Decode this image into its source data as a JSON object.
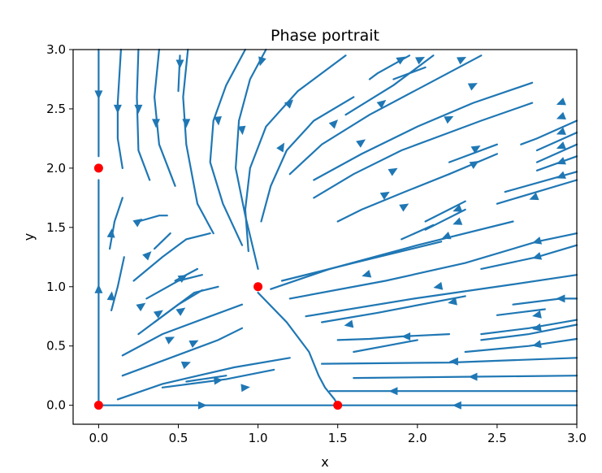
{
  "chart_data": {
    "type": "streamplot",
    "title": "Phase portrait",
    "xlabel": "x",
    "ylabel": "y",
    "xlim": [
      -0.16,
      3.0
    ],
    "ylim": [
      -0.16,
      3.0
    ],
    "xticks": [
      "0.0",
      "0.5",
      "1.0",
      "1.5",
      "2.0",
      "2.5",
      "3.0"
    ],
    "yticks": [
      "0.0",
      "0.5",
      "1.0",
      "1.5",
      "2.0",
      "2.5",
      "3.0"
    ],
    "grid": false,
    "legend": "none",
    "stream_color": "#1f77b4",
    "equilibrium_color": "#ff0000",
    "equilibria": [
      {
        "x": 0.0,
        "y": 0.0
      },
      {
        "x": 0.0,
        "y": 2.0
      },
      {
        "x": 1.0,
        "y": 1.0
      },
      {
        "x": 1.5,
        "y": 0.0
      }
    ],
    "streamlines": [
      [
        [
          0.0,
          3.0
        ],
        [
          0.0,
          2.55
        ],
        [
          0.0,
          2.1
        ]
      ],
      [
        [
          0.0,
          0.0
        ],
        [
          0.0,
          1.0
        ],
        [
          0.0,
          1.9
        ]
      ],
      [
        [
          0.0,
          0.0
        ],
        [
          0.7,
          0.0
        ],
        [
          1.5,
          0.0
        ]
      ],
      [
        [
          3.0,
          0.0
        ],
        [
          2.3,
          0.0
        ],
        [
          1.5,
          0.0
        ]
      ],
      [
        [
          0.14,
          3.0
        ],
        [
          0.12,
          2.55
        ],
        [
          0.12,
          2.25
        ],
        [
          0.15,
          2.0
        ]
      ],
      [
        [
          0.25,
          3.0
        ],
        [
          0.24,
          2.6
        ],
        [
          0.25,
          2.15
        ],
        [
          0.32,
          1.9
        ]
      ],
      [
        [
          0.38,
          3.0
        ],
        [
          0.35,
          2.6
        ],
        [
          0.38,
          2.2
        ],
        [
          0.48,
          1.85
        ]
      ],
      [
        [
          0.56,
          3.0
        ],
        [
          0.53,
          2.6
        ],
        [
          0.55,
          2.2
        ],
        [
          0.62,
          1.7
        ],
        [
          0.72,
          1.45
        ]
      ],
      [
        [
          0.51,
          2.95
        ],
        [
          0.5,
          2.65
        ]
      ],
      [
        [
          0.92,
          3.0
        ],
        [
          0.8,
          2.7
        ],
        [
          0.72,
          2.4
        ],
        [
          0.7,
          2.05
        ],
        [
          0.78,
          1.7
        ],
        [
          0.9,
          1.35
        ]
      ],
      [
        [
          1.05,
          3.0
        ],
        [
          0.95,
          2.75
        ],
        [
          0.88,
          2.4
        ],
        [
          0.86,
          2.0
        ],
        [
          0.92,
          1.6
        ],
        [
          1.0,
          1.15
        ]
      ],
      [
        [
          1.55,
          2.95
        ],
        [
          1.25,
          2.65
        ],
        [
          1.05,
          2.35
        ],
        [
          0.95,
          2.0
        ],
        [
          0.92,
          1.65
        ],
        [
          0.94,
          1.3
        ]
      ],
      [
        [
          1.6,
          2.6
        ],
        [
          1.35,
          2.4
        ],
        [
          1.18,
          2.15
        ],
        [
          1.08,
          1.85
        ],
        [
          1.02,
          1.55
        ]
      ],
      [
        [
          2.4,
          2.95
        ],
        [
          2.05,
          2.7
        ],
        [
          1.7,
          2.45
        ],
        [
          1.4,
          2.2
        ],
        [
          1.2,
          1.95
        ]
      ],
      [
        [
          2.1,
          2.95
        ],
        [
          1.85,
          2.7
        ],
        [
          1.55,
          2.45
        ]
      ],
      [
        [
          2.72,
          2.72
        ],
        [
          2.35,
          2.55
        ],
        [
          2.0,
          2.35
        ],
        [
          1.65,
          2.12
        ],
        [
          1.35,
          1.9
        ]
      ],
      [
        [
          1.95,
          2.95
        ],
        [
          1.75,
          2.8
        ],
        [
          1.7,
          2.75
        ]
      ],
      [
        [
          2.05,
          2.85
        ],
        [
          1.85,
          2.75
        ]
      ],
      [
        [
          2.72,
          2.55
        ],
        [
          2.4,
          2.4
        ],
        [
          2.2,
          2.3
        ],
        [
          1.9,
          2.15
        ],
        [
          1.6,
          1.95
        ],
        [
          1.35,
          1.75
        ]
      ],
      [
        [
          2.5,
          2.2
        ],
        [
          2.2,
          2.05
        ]
      ],
      [
        [
          2.5,
          2.12
        ],
        [
          2.2,
          1.95
        ]
      ],
      [
        [
          3.0,
          2.4
        ],
        [
          2.75,
          2.25
        ],
        [
          2.65,
          2.2
        ]
      ],
      [
        [
          3.0,
          2.3
        ],
        [
          2.75,
          2.15
        ]
      ],
      [
        [
          3.0,
          2.2
        ],
        [
          2.75,
          2.05
        ]
      ],
      [
        [
          3.0,
          2.1
        ],
        [
          2.75,
          1.98
        ]
      ],
      [
        [
          3.0,
          1.97
        ],
        [
          2.55,
          1.8
        ]
      ],
      [
        [
          3.0,
          1.9
        ],
        [
          2.5,
          1.7
        ]
      ],
      [
        [
          2.2,
          1.95
        ],
        [
          1.92,
          1.8
        ],
        [
          1.65,
          1.65
        ],
        [
          1.5,
          1.55
        ]
      ],
      [
        [
          2.3,
          1.72
        ],
        [
          2.05,
          1.55
        ]
      ],
      [
        [
          2.3,
          1.65
        ],
        [
          2.05,
          1.48
        ]
      ],
      [
        [
          2.1,
          1.52
        ],
        [
          1.9,
          1.4
        ]
      ],
      [
        [
          2.15,
          1.38
        ],
        [
          1.6,
          1.2
        ],
        [
          1.15,
          1.05
        ]
      ],
      [
        [
          2.6,
          1.55
        ],
        [
          2.0,
          1.35
        ],
        [
          1.45,
          1.15
        ],
        [
          1.08,
          0.98
        ]
      ],
      [
        [
          3.0,
          1.45
        ],
        [
          2.75,
          1.38
        ],
        [
          2.3,
          1.2
        ],
        [
          1.8,
          1.05
        ],
        [
          1.2,
          0.9
        ]
      ],
      [
        [
          3.0,
          1.35
        ],
        [
          2.75,
          1.25
        ],
        [
          2.4,
          1.15
        ]
      ],
      [
        [
          3.0,
          1.1
        ],
        [
          2.6,
          1.02
        ],
        [
          1.98,
          0.9
        ],
        [
          1.3,
          0.75
        ]
      ],
      [
        [
          3.0,
          0.9
        ],
        [
          2.9,
          0.9
        ],
        [
          2.6,
          0.85
        ]
      ],
      [
        [
          2.3,
          0.92
        ],
        [
          1.75,
          0.78
        ],
        [
          1.4,
          0.7
        ]
      ],
      [
        [
          2.8,
          0.81
        ],
        [
          2.5,
          0.76
        ]
      ],
      [
        [
          3.0,
          0.72
        ],
        [
          2.7,
          0.65
        ],
        [
          2.4,
          0.6
        ]
      ],
      [
        [
          3.0,
          0.68
        ],
        [
          2.7,
          0.6
        ],
        [
          2.4,
          0.55
        ]
      ],
      [
        [
          3.0,
          0.56
        ],
        [
          2.7,
          0.5
        ],
        [
          2.3,
          0.45
        ]
      ],
      [
        [
          2.2,
          0.6
        ],
        [
          1.9,
          0.58
        ],
        [
          1.7,
          0.56
        ],
        [
          1.5,
          0.55
        ]
      ],
      [
        [
          2.0,
          0.55
        ],
        [
          1.8,
          0.5
        ],
        [
          1.6,
          0.45
        ]
      ],
      [
        [
          3.0,
          0.4
        ],
        [
          2.2,
          0.36
        ],
        [
          1.4,
          0.35
        ]
      ],
      [
        [
          3.0,
          0.25
        ],
        [
          2.3,
          0.24
        ],
        [
          1.6,
          0.23
        ]
      ],
      [
        [
          3.0,
          0.12
        ],
        [
          2.1,
          0.12
        ],
        [
          1.45,
          0.12
        ]
      ],
      [
        [
          1.0,
          0.95
        ],
        [
          1.18,
          0.7
        ],
        [
          1.32,
          0.45
        ],
        [
          1.38,
          0.25
        ],
        [
          1.42,
          0.15
        ],
        [
          1.48,
          0.05
        ],
        [
          1.5,
          0.0
        ]
      ],
      [
        [
          0.12,
          0.05
        ],
        [
          0.4,
          0.18
        ],
        [
          0.85,
          0.32
        ],
        [
          1.2,
          0.4
        ]
      ],
      [
        [
          0.4,
          0.15
        ],
        [
          0.8,
          0.22
        ],
        [
          1.1,
          0.3
        ]
      ],
      [
        [
          0.8,
          0.25
        ],
        [
          0.55,
          0.2
        ]
      ],
      [
        [
          0.15,
          0.25
        ],
        [
          0.45,
          0.4
        ],
        [
          0.75,
          0.55
        ],
        [
          0.9,
          0.65
        ]
      ],
      [
        [
          0.15,
          0.42
        ],
        [
          0.4,
          0.6
        ],
        [
          0.7,
          0.75
        ],
        [
          0.9,
          0.85
        ]
      ],
      [
        [
          0.25,
          0.6
        ],
        [
          0.45,
          0.8
        ],
        [
          0.6,
          0.95
        ],
        [
          0.75,
          1.0
        ]
      ],
      [
        [
          0.35,
          0.7
        ],
        [
          0.5,
          0.85
        ],
        [
          0.65,
          0.97
        ]
      ],
      [
        [
          0.3,
          0.9
        ],
        [
          0.5,
          1.05
        ],
        [
          0.65,
          1.1
        ]
      ],
      [
        [
          0.48,
          1.05
        ],
        [
          0.62,
          1.15
        ]
      ],
      [
        [
          0.22,
          1.05
        ],
        [
          0.4,
          1.25
        ],
        [
          0.55,
          1.4
        ],
        [
          0.7,
          1.45
        ]
      ],
      [
        [
          0.25,
          1.55
        ],
        [
          0.38,
          1.6
        ],
        [
          0.43,
          1.6
        ]
      ],
      [
        [
          0.08,
          0.8
        ],
        [
          0.12,
          1.0
        ],
        [
          0.16,
          1.25
        ]
      ],
      [
        [
          0.07,
          1.32
        ],
        [
          0.1,
          1.55
        ],
        [
          0.15,
          1.75
        ]
      ],
      [
        [
          0.35,
          1.32
        ],
        [
          0.45,
          1.45
        ]
      ]
    ],
    "arrows": [
      {
        "x": 0.0,
        "y": 2.62,
        "dx": 0,
        "dy": -1
      },
      {
        "x": 0.0,
        "y": 0.98,
        "dx": 0,
        "dy": 1
      },
      {
        "x": 0.65,
        "y": 0.0,
        "dx": 1,
        "dy": 0
      },
      {
        "x": 2.25,
        "y": 0.0,
        "dx": -1,
        "dy": 0
      },
      {
        "x": 0.12,
        "y": 2.5,
        "dx": 0,
        "dy": -1
      },
      {
        "x": 0.25,
        "y": 2.5,
        "dx": 0,
        "dy": -1
      },
      {
        "x": 0.36,
        "y": 2.38,
        "dx": 0,
        "dy": -1
      },
      {
        "x": 0.55,
        "y": 2.38,
        "dx": 0,
        "dy": -1
      },
      {
        "x": 0.51,
        "y": 2.88,
        "dx": 0,
        "dy": -1
      },
      {
        "x": 0.75,
        "y": 2.4,
        "dx": 0.1,
        "dy": -1
      },
      {
        "x": 0.9,
        "y": 2.32,
        "dx": 0.1,
        "dy": -1
      },
      {
        "x": 1.02,
        "y": 2.9,
        "dx": -0.3,
        "dy": -1
      },
      {
        "x": 1.2,
        "y": 2.55,
        "dx": 1,
        "dy": 1
      },
      {
        "x": 1.15,
        "y": 2.18,
        "dx": 0.6,
        "dy": 1
      },
      {
        "x": 1.48,
        "y": 2.38,
        "dx": 1,
        "dy": 1
      },
      {
        "x": 1.65,
        "y": 2.22,
        "dx": 1,
        "dy": 0.7
      },
      {
        "x": 1.78,
        "y": 2.55,
        "dx": 1,
        "dy": 0.8
      },
      {
        "x": 1.9,
        "y": 2.92,
        "dx": 1,
        "dy": 0.6
      },
      {
        "x": 2.02,
        "y": 2.92,
        "dx": 1,
        "dy": 0.5
      },
      {
        "x": 2.28,
        "y": 2.92,
        "dx": 1,
        "dy": 0.5
      },
      {
        "x": 2.35,
        "y": 2.7,
        "dx": 1,
        "dy": 0.5
      },
      {
        "x": 2.2,
        "y": 2.42,
        "dx": 1,
        "dy": 0.5
      },
      {
        "x": 1.85,
        "y": 1.98,
        "dx": 1,
        "dy": 0.6
      },
      {
        "x": 1.8,
        "y": 1.78,
        "dx": 1,
        "dy": 0.6
      },
      {
        "x": 1.92,
        "y": 1.68,
        "dx": 1,
        "dy": 0.6
      },
      {
        "x": 2.37,
        "y": 2.17,
        "dx": 1,
        "dy": 0.6
      },
      {
        "x": 2.36,
        "y": 2.04,
        "dx": 1,
        "dy": 0.6
      },
      {
        "x": 2.9,
        "y": 2.55,
        "dx": -1,
        "dy": -0.4
      },
      {
        "x": 2.9,
        "y": 2.43,
        "dx": -1,
        "dy": -0.4
      },
      {
        "x": 2.9,
        "y": 2.3,
        "dx": -1,
        "dy": -0.4
      },
      {
        "x": 2.9,
        "y": 2.18,
        "dx": -1,
        "dy": -0.4
      },
      {
        "x": 2.9,
        "y": 2.05,
        "dx": -1,
        "dy": -0.4
      },
      {
        "x": 2.9,
        "y": 1.93,
        "dx": -1,
        "dy": -0.4
      },
      {
        "x": 2.73,
        "y": 1.75,
        "dx": -1,
        "dy": -0.4
      },
      {
        "x": 2.25,
        "y": 1.65,
        "dx": -1,
        "dy": -0.4
      },
      {
        "x": 2.25,
        "y": 1.54,
        "dx": -1,
        "dy": -0.4
      },
      {
        "x": 2.18,
        "y": 1.42,
        "dx": -1,
        "dy": -0.4
      },
      {
        "x": 2.75,
        "y": 1.38,
        "dx": -1,
        "dy": -0.3
      },
      {
        "x": 2.75,
        "y": 1.25,
        "dx": -1,
        "dy": -0.3
      },
      {
        "x": 1.68,
        "y": 1.1,
        "dx": -1,
        "dy": -0.3
      },
      {
        "x": 2.13,
        "y": 1.0,
        "dx": -1,
        "dy": -0.2
      },
      {
        "x": 2.9,
        "y": 0.9,
        "dx": -1,
        "dy": 0
      },
      {
        "x": 2.22,
        "y": 0.87,
        "dx": -1,
        "dy": -0.2
      },
      {
        "x": 2.75,
        "y": 0.76,
        "dx": -1,
        "dy": -0.2
      },
      {
        "x": 2.75,
        "y": 0.65,
        "dx": -1,
        "dy": -0.2
      },
      {
        "x": 2.75,
        "y": 0.51,
        "dx": -1,
        "dy": -0.2
      },
      {
        "x": 1.57,
        "y": 0.68,
        "dx": -1,
        "dy": -0.2
      },
      {
        "x": 1.93,
        "y": 0.58,
        "dx": -1,
        "dy": 0
      },
      {
        "x": 2.23,
        "y": 0.37,
        "dx": -1,
        "dy": 0
      },
      {
        "x": 2.35,
        "y": 0.24,
        "dx": -1,
        "dy": 0
      },
      {
        "x": 1.85,
        "y": 0.12,
        "dx": -1,
        "dy": 0
      },
      {
        "x": 0.75,
        "y": 0.21,
        "dx": 1,
        "dy": 0.1
      },
      {
        "x": 0.92,
        "y": 0.15,
        "dx": 1,
        "dy": 0.1
      },
      {
        "x": 0.55,
        "y": 0.35,
        "dx": 1,
        "dy": 0.4
      },
      {
        "x": 0.6,
        "y": 0.53,
        "dx": 1,
        "dy": 0.5
      },
      {
        "x": 0.45,
        "y": 0.56,
        "dx": 1,
        "dy": 0.5
      },
      {
        "x": 0.38,
        "y": 0.78,
        "dx": 1,
        "dy": 0.7
      },
      {
        "x": 0.52,
        "y": 0.8,
        "dx": 1,
        "dy": 0.7
      },
      {
        "x": 0.27,
        "y": 0.84,
        "dx": 1,
        "dy": 0.7
      },
      {
        "x": 0.53,
        "y": 1.08,
        "dx": 1,
        "dy": 0.6
      },
      {
        "x": 0.31,
        "y": 1.27,
        "dx": 1,
        "dy": 1
      },
      {
        "x": 0.25,
        "y": 1.55,
        "dx": 1,
        "dy": 0.7
      },
      {
        "x": 0.08,
        "y": 0.92,
        "dx": 0.1,
        "dy": 1
      },
      {
        "x": 0.08,
        "y": 1.45,
        "dx": 0.1,
        "dy": 1
      }
    ]
  }
}
